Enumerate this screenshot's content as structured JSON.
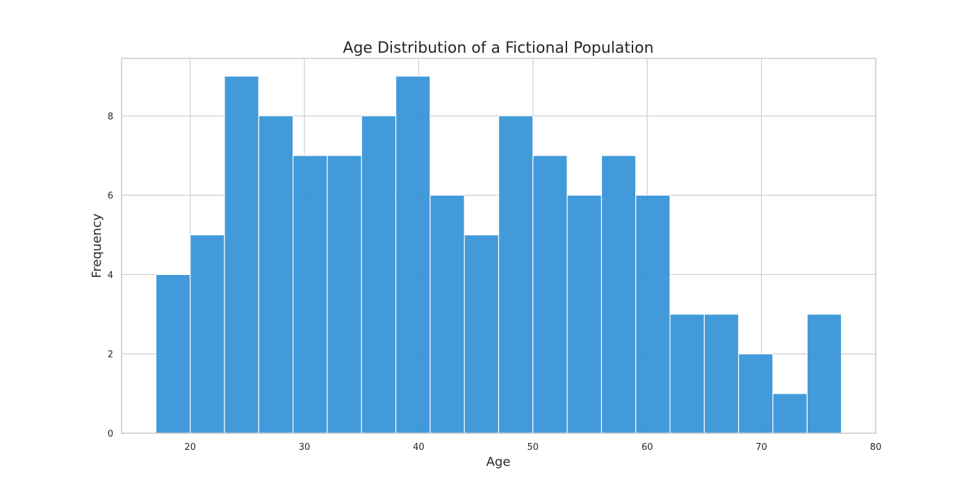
{
  "chart_data": {
    "type": "bar",
    "histogram": true,
    "title": "Age Distribution of a Fictional Population",
    "xlabel": "Age",
    "ylabel": "Frequency",
    "bin_start": 17,
    "bin_width": 3,
    "values": [
      4,
      5,
      9,
      8,
      7,
      7,
      8,
      9,
      6,
      5,
      8,
      7,
      6,
      7,
      6,
      3,
      3,
      2,
      1,
      3
    ],
    "xlim": [
      14,
      80
    ],
    "ylim": [
      0,
      9.45
    ],
    "xticks": [
      20,
      30,
      40,
      50,
      60,
      70,
      80
    ],
    "yticks": [
      0,
      2,
      4,
      6,
      8
    ],
    "grid": true,
    "legend": "none",
    "bar_color": "#2f8fd6",
    "edge_color": "#ffffff"
  }
}
